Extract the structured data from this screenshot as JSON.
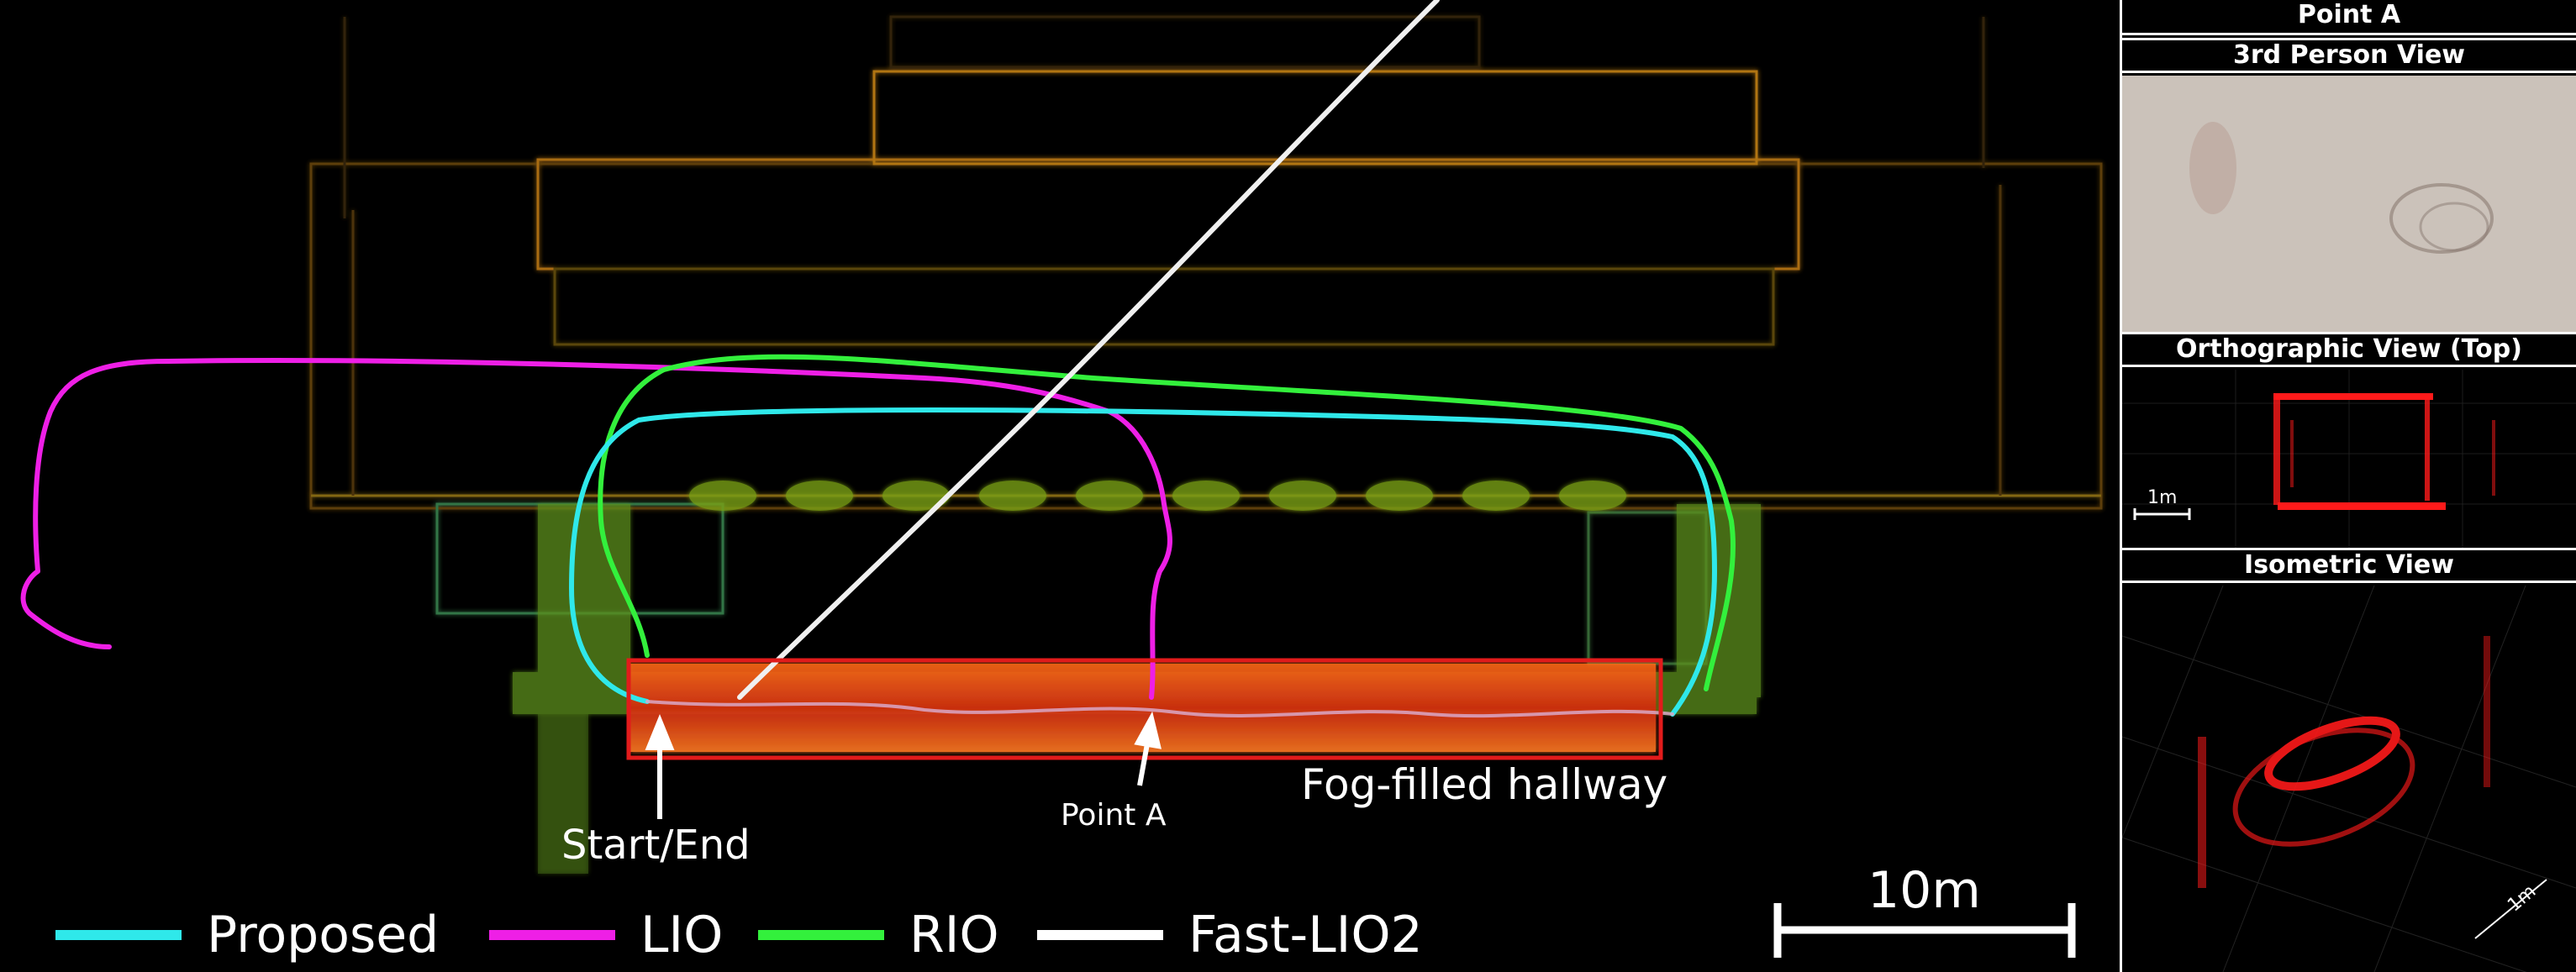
{
  "annotations": {
    "start_end": "Start/End",
    "point_a": "Point A",
    "fog_hallway": "Fog-filled hallway",
    "scale_bar": "10m"
  },
  "legend": [
    {
      "label": "Proposed",
      "color": "#2fe8ea"
    },
    {
      "label": "LIO",
      "color": "#ee1fe6"
    },
    {
      "label": "RIO",
      "color": "#33f03c"
    },
    {
      "label": "Fast-LIO2",
      "color": "#ffffff"
    }
  ],
  "side_panel": {
    "title": "Point A",
    "views": [
      {
        "title": "3rd Person View"
      },
      {
        "title": "Orthographic View (Top)",
        "scale": "1m"
      },
      {
        "title": "Isometric View",
        "scale": "1m"
      }
    ]
  },
  "colors": {
    "pointcloud": "#ff3b10",
    "highlight_box": "#e21b1b",
    "fog_bg": "#cfc7bf"
  }
}
